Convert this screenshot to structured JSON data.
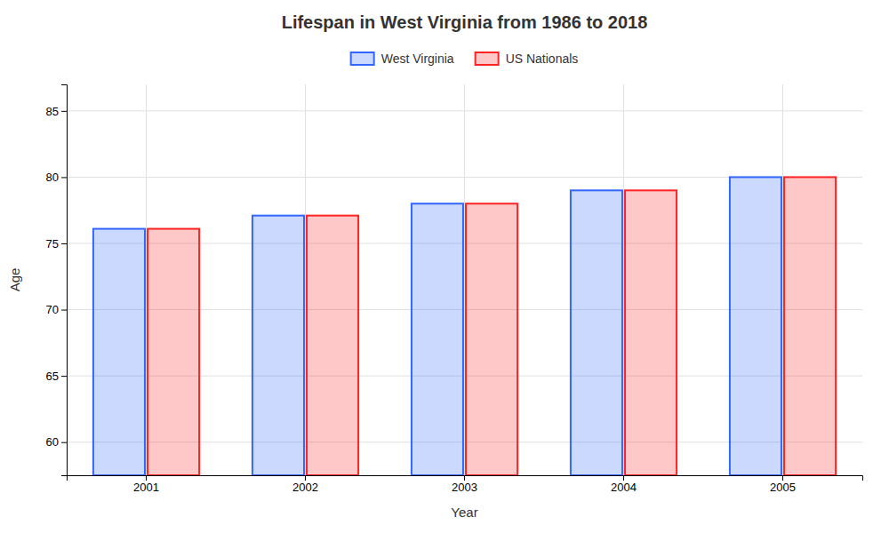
{
  "chart_data": {
    "type": "bar",
    "title": "Lifespan in West Virginia from 1986 to 2018",
    "xlabel": "Year",
    "ylabel": "Age",
    "categories": [
      "2001",
      "2002",
      "2003",
      "2004",
      "2005"
    ],
    "series": [
      {
        "name": "West Virginia",
        "color": "#3366ff",
        "values": [
          76.1,
          77.1,
          78.0,
          79.0,
          80.0
        ]
      },
      {
        "name": "US Nationals",
        "color": "#ff2222",
        "values": [
          76.1,
          77.1,
          78.0,
          79.0,
          80.0
        ]
      }
    ],
    "ylim": [
      57.5,
      87
    ],
    "yticks": [
      60,
      65,
      70,
      75,
      80,
      85
    ],
    "grid": true,
    "legend": "top"
  }
}
